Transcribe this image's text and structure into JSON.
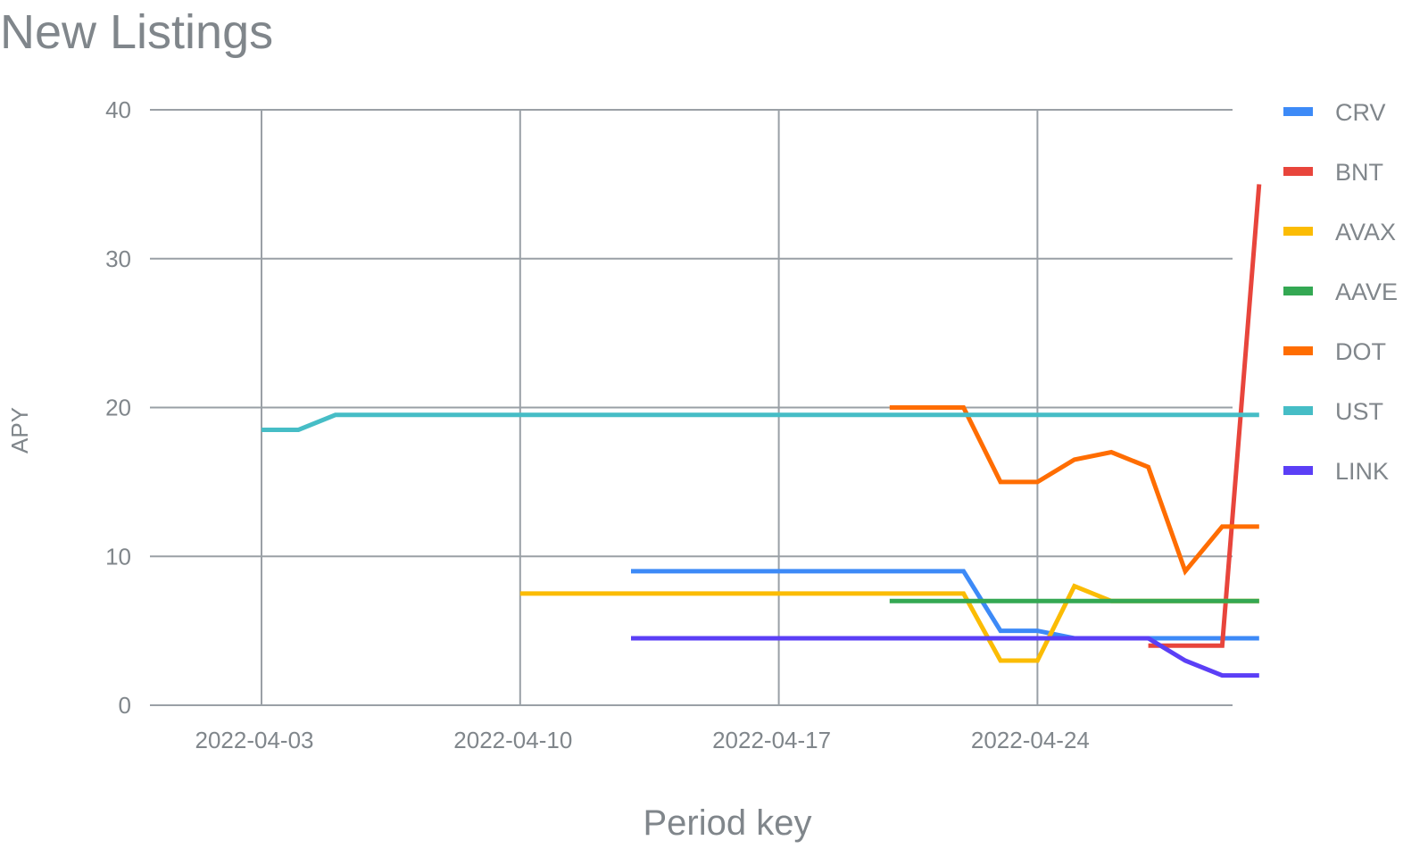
{
  "chart_data": {
    "type": "line",
    "title": "New Listings",
    "xlabel": "Period key",
    "ylabel": "APY",
    "x_ticks": [
      "2022-04-03",
      "2022-04-10",
      "2022-04-17",
      "2022-04-24"
    ],
    "x_range": [
      "2022-04-03",
      "2022-04-30"
    ],
    "ylim": [
      0,
      40
    ],
    "y_ticks": [
      "0",
      "10",
      "20",
      "30",
      "40"
    ],
    "grid": true,
    "legend_position": "right",
    "series": [
      {
        "name": "CRV",
        "color": "#3d8af7",
        "points": [
          [
            "2022-04-13",
            9
          ],
          [
            "2022-04-22",
            9
          ],
          [
            "2022-04-23",
            5
          ],
          [
            "2022-04-24",
            5
          ],
          [
            "2022-04-25",
            4.5
          ],
          [
            "2022-04-30",
            4.5
          ]
        ]
      },
      {
        "name": "BNT",
        "color": "#e8453c",
        "points": [
          [
            "2022-04-27",
            4
          ],
          [
            "2022-04-29",
            4
          ],
          [
            "2022-04-30",
            35
          ]
        ]
      },
      {
        "name": "AVAX",
        "color": "#fbbc04",
        "points": [
          [
            "2022-04-10",
            7.5
          ],
          [
            "2022-04-22",
            7.5
          ],
          [
            "2022-04-23",
            3
          ],
          [
            "2022-04-24",
            3
          ],
          [
            "2022-04-25",
            8
          ],
          [
            "2022-04-26",
            7
          ],
          [
            "2022-04-30",
            7
          ]
        ]
      },
      {
        "name": "AAVE",
        "color": "#34a853",
        "points": [
          [
            "2022-04-20",
            7
          ],
          [
            "2022-04-30",
            7
          ]
        ]
      },
      {
        "name": "DOT",
        "color": "#ff6d01",
        "points": [
          [
            "2022-04-20",
            20
          ],
          [
            "2022-04-22",
            20
          ],
          [
            "2022-04-23",
            15
          ],
          [
            "2022-04-24",
            15
          ],
          [
            "2022-04-25",
            16.5
          ],
          [
            "2022-04-26",
            17
          ],
          [
            "2022-04-27",
            16
          ],
          [
            "2022-04-28",
            9
          ],
          [
            "2022-04-29",
            12
          ],
          [
            "2022-04-30",
            12
          ]
        ]
      },
      {
        "name": "UST",
        "color": "#46bdc6",
        "points": [
          [
            "2022-04-03",
            18.5
          ],
          [
            "2022-04-04",
            18.5
          ],
          [
            "2022-04-05",
            19.5
          ],
          [
            "2022-04-30",
            19.5
          ]
        ]
      },
      {
        "name": "LINK",
        "color": "#5b3ff6",
        "points": [
          [
            "2022-04-13",
            4.5
          ],
          [
            "2022-04-27",
            4.5
          ],
          [
            "2022-04-28",
            3
          ],
          [
            "2022-04-29",
            2
          ],
          [
            "2022-04-30",
            2
          ]
        ]
      }
    ]
  }
}
